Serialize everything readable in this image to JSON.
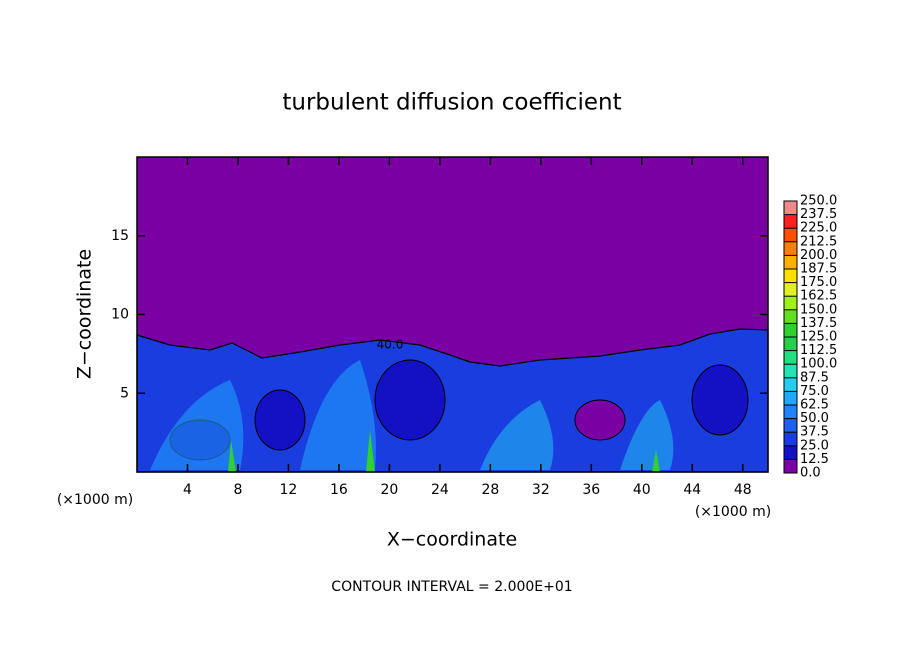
{
  "chart_data": {
    "type": "contour",
    "title": "turbulent diffusion coefficient",
    "xlabel": "X−coordinate",
    "ylabel": "Z−coordinate",
    "x_unit_label": "(×1000 m)",
    "footer": "CONTOUR INTERVAL = 2.000E+01",
    "annotations": [
      "40.0"
    ],
    "xlim": [
      0,
      50
    ],
    "ylim": [
      0,
      20
    ],
    "xticks": [
      4,
      8,
      12,
      16,
      20,
      24,
      28,
      32,
      36,
      40,
      44,
      48
    ],
    "yticks": [
      5,
      10,
      15
    ],
    "colorbar": {
      "levels": [
        {
          "value": 0,
          "label": "0.0"
        },
        12.5,
        {
          "value": 25,
          "label": "25.0"
        },
        37.5,
        {
          "value": 50,
          "label": "50.0"
        },
        62.5,
        {
          "value": 75,
          "label": "75.0"
        },
        87.5,
        {
          "value": 100,
          "label": "100.0"
        },
        112.5,
        {
          "value": 125,
          "label": "125.0"
        },
        137.5,
        {
          "value": 150,
          "label": "150.0"
        },
        162.5,
        {
          "value": 175,
          "label": "175.0"
        },
        187.5,
        {
          "value": 200,
          "label": "200.0"
        },
        212.5,
        {
          "value": 225,
          "label": "225.0"
        },
        237.5,
        {
          "value": 250,
          "label": "250.0"
        }
      ],
      "colors": [
        "#7a00a4",
        "#1212c4",
        "#1a3de0",
        "#2060f0",
        "#2082ff",
        "#20a8ff",
        "#20d0f0",
        "#20e4b4",
        "#20e080",
        "#20d050",
        "#30d030",
        "#60e020",
        "#a0f020",
        "#e0f020",
        "#ffe000",
        "#ffb000",
        "#ff8000",
        "#ff5000",
        "#ff2020",
        "#f08a8a"
      ]
    }
  }
}
